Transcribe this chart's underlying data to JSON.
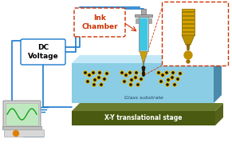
{
  "bg_color": "#ffffff",
  "platform_color": "#6b7c2e",
  "platform_dark": "#4a5a10",
  "platform_side": "#55621a",
  "glass_color": "#7ec8e3",
  "glass_top": "#a8dff5",
  "glass_side": "#4a8aaa",
  "glass_alpha": 0.9,
  "dot_yellow": "#e8b800",
  "dot_dark": "#1a1000",
  "ink_chamber_label": "Ink\nChamber",
  "dc_voltage_label": "DC\nVoltage",
  "glass_label": "Glass substrate",
  "stage_label": "X-Y translational stage",
  "box_edge_color": "#cc3300",
  "wire_color": "#1a7acc",
  "syringe_body": "#b8dff0",
  "syringe_liquid": "#20c0e0",
  "nozzle_color": "#c8a000",
  "inset_nozzle_color": "#d4a000"
}
